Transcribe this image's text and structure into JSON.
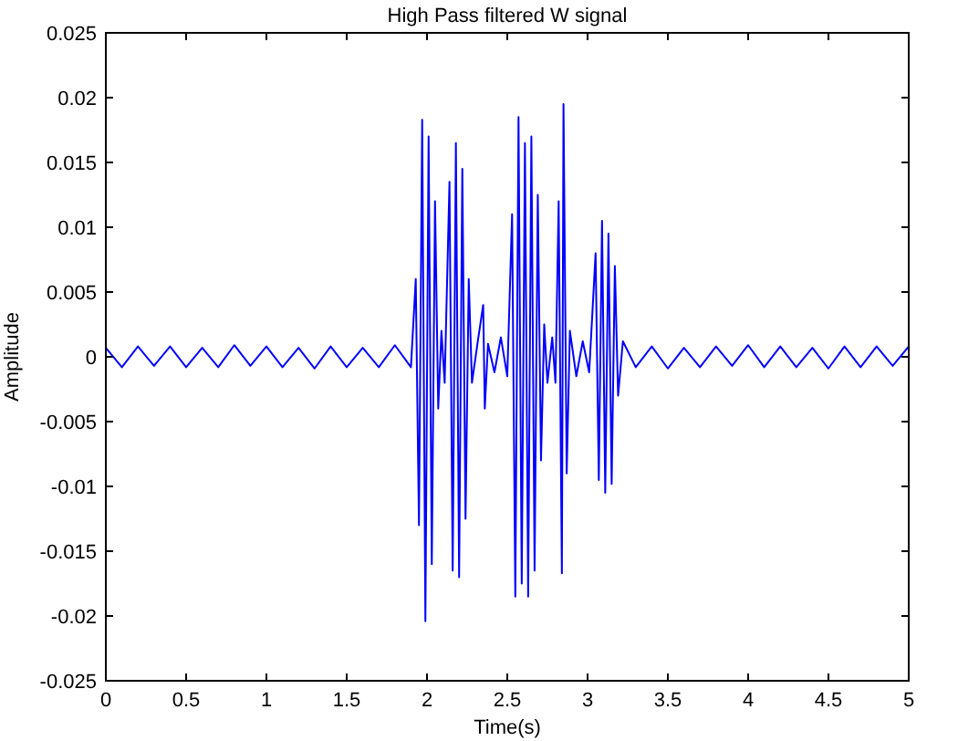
{
  "chart_data": {
    "type": "line",
    "title": "High Pass filtered W signal",
    "xlabel": "Time(s)",
    "ylabel": "Amplitude",
    "xlim": [
      0,
      5
    ],
    "ylim": [
      -0.025,
      0.025
    ],
    "xticks": [
      0,
      0.5,
      1,
      1.5,
      2,
      2.5,
      3,
      3.5,
      4,
      4.5,
      5
    ],
    "yticks": [
      -0.025,
      -0.02,
      -0.015,
      -0.01,
      -0.005,
      0,
      0.005,
      0.01,
      0.015,
      0.02,
      0.025
    ],
    "grid": false,
    "series": [
      {
        "color": "#0000ff",
        "x": [
          0,
          0.1,
          0.2,
          0.3,
          0.4,
          0.5,
          0.6,
          0.7,
          0.8,
          0.9,
          1,
          1.1,
          1.2,
          1.3,
          1.4,
          1.5,
          1.6,
          1.7,
          1.8,
          1.9,
          1.93,
          1.95,
          1.97,
          1.99,
          2.01,
          2.03,
          2.05,
          2.07,
          2.09,
          2.11,
          2.14,
          2.16,
          2.18,
          2.2,
          2.22,
          2.24,
          2.26,
          2.28,
          2.32,
          2.35,
          2.36,
          2.38,
          2.42,
          2.46,
          2.5,
          2.53,
          2.55,
          2.57,
          2.59,
          2.61,
          2.63,
          2.65,
          2.67,
          2.69,
          2.71,
          2.73,
          2.75,
          2.78,
          2.8,
          2.82,
          2.84,
          2.85,
          2.87,
          2.89,
          2.93,
          2.97,
          3.01,
          3.05,
          3.07,
          3.09,
          3.11,
          3.13,
          3.15,
          3.17,
          3.19,
          3.22,
          3.3,
          3.4,
          3.5,
          3.6,
          3.7,
          3.8,
          3.9,
          4,
          4.1,
          4.2,
          4.3,
          4.4,
          4.5,
          4.6,
          4.7,
          4.8,
          4.9,
          5
        ],
        "values": [
          0.0007,
          -0.0008,
          0.0008,
          -0.0007,
          0.0008,
          -0.0008,
          0.0007,
          -0.0008,
          0.0009,
          -0.0007,
          0.0008,
          -0.0008,
          0.0007,
          -0.0009,
          0.0008,
          -0.0008,
          0.0007,
          -0.0008,
          0.0009,
          -0.0008,
          0.006,
          -0.013,
          0.0183,
          -0.0204,
          0.017,
          -0.016,
          0.012,
          -0.004,
          0.002,
          -0.002,
          0.0135,
          -0.0165,
          0.0165,
          -0.017,
          0.0145,
          -0.0125,
          0.006,
          -0.002,
          0.0015,
          0.004,
          -0.004,
          0.001,
          -0.0012,
          0.0015,
          -0.0015,
          0.011,
          -0.0185,
          0.0185,
          -0.0175,
          0.0165,
          -0.0185,
          0.017,
          -0.0165,
          0.0125,
          -0.008,
          0.0025,
          -0.002,
          0.0015,
          -0.002,
          0.012,
          -0.0167,
          0.0195,
          -0.009,
          0.002,
          -0.0015,
          0.0012,
          -0.0012,
          0.008,
          -0.0095,
          0.0105,
          -0.0105,
          0.0095,
          -0.0098,
          0.007,
          -0.003,
          0.0012,
          -0.0008,
          0.0008,
          -0.0009,
          0.0007,
          -0.0008,
          0.0008,
          -0.0007,
          0.0009,
          -0.0008,
          0.0008,
          -0.0008,
          0.0007,
          -0.0009,
          0.0008,
          -0.0008,
          0.0008,
          -0.0007,
          0.0008
        ]
      }
    ]
  }
}
